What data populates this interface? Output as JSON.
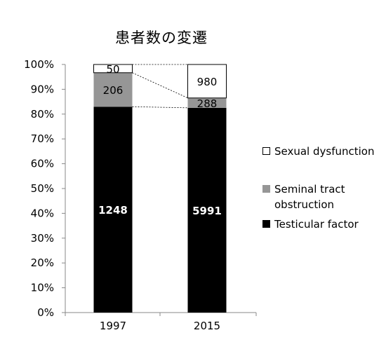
{
  "chart_data": {
    "type": "bar",
    "stacked": "percent",
    "title": "患者数の変遷",
    "categories": [
      "1997",
      "2015"
    ],
    "series": [
      {
        "name": "Testicular factor",
        "values": [
          1248,
          5991
        ],
        "color": "#000000",
        "label_color": "#ffffff"
      },
      {
        "name": "Seminal tract obstruction",
        "values": [
          206,
          288
        ],
        "color": "#969696",
        "label_color": "#000000"
      },
      {
        "name": "Sexual dysfunction",
        "values": [
          50,
          980
        ],
        "color": "#ffffff",
        "label_color": "#000000"
      }
    ],
    "y_ticks": [
      "0%",
      "10%",
      "20%",
      "30%",
      "40%",
      "50%",
      "60%",
      "70%",
      "80%",
      "90%",
      "100%"
    ],
    "ylim": [
      0,
      100
    ],
    "legend_position": "right",
    "grid": false,
    "connector_lines": true
  }
}
